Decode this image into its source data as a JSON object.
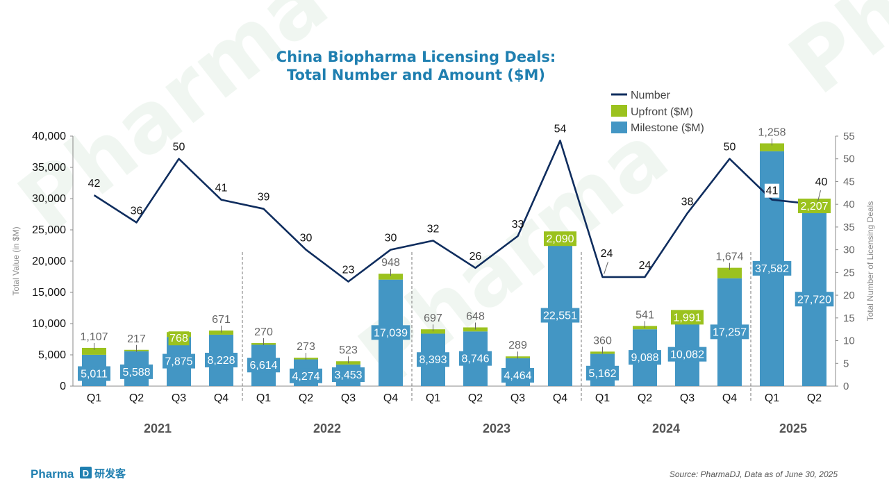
{
  "chart_data": {
    "type": "bar",
    "title_lines": [
      "China Biopharma Licensing Deals:",
      "Total Number and Amount ($M)"
    ],
    "ylabel": "Total Value (in $M)",
    "y2label": "Total Number of Licensing Deals",
    "ylim": [
      0,
      40000
    ],
    "y2lim": [
      0,
      55
    ],
    "yticks": [
      "0",
      "5,000",
      "10,000",
      "15,000",
      "20,000",
      "25,000",
      "30,000",
      "35,000",
      "40,000"
    ],
    "y2ticks": [
      "0",
      "5",
      "10",
      "15",
      "20",
      "25",
      "30",
      "35",
      "40",
      "45",
      "50",
      "55"
    ],
    "legend_position": "top-right",
    "years": [
      "2021",
      "2022",
      "2023",
      "2024",
      "2025"
    ],
    "categories": [
      "Q1",
      "Q2",
      "Q3",
      "Q4",
      "Q1",
      "Q2",
      "Q3",
      "Q4",
      "Q1",
      "Q2",
      "Q3",
      "Q4",
      "Q1",
      "Q2",
      "Q3",
      "Q4",
      "Q1",
      "Q2"
    ],
    "series": [
      {
        "name": "Milestone ($M)",
        "kind": "bar",
        "color": "#4396c4",
        "values": [
          5011,
          5588,
          7875,
          8228,
          6614,
          4274,
          3453,
          17039,
          8393,
          8746,
          4464,
          22551,
          5162,
          9088,
          10082,
          17257,
          37582,
          27720
        ],
        "labels": [
          "5,011",
          "5,588",
          "7,875",
          "8,228",
          "6,614",
          "4,274",
          "3,453",
          "17,039",
          "8,393",
          "8,746",
          "4,464",
          "22,551",
          "5,162",
          "9,088",
          "10,082",
          "17,257",
          "37,582",
          "27,720"
        ]
      },
      {
        "name": "Upfront ($M)",
        "kind": "bar",
        "color": "#9bc21e",
        "values": [
          1107,
          217,
          768,
          671,
          270,
          273,
          523,
          948,
          697,
          648,
          289,
          2090,
          360,
          541,
          1991,
          1674,
          1258,
          2207
        ],
        "labels": [
          "1,107",
          "217",
          "768",
          "671",
          "270",
          "273",
          "523",
          "948",
          "697",
          "648",
          "289",
          "2,090",
          "360",
          "541",
          "1,991",
          "1,674",
          "1,258",
          "2,207"
        ]
      },
      {
        "name": "Number",
        "kind": "line",
        "axis": "right",
        "color": "#0f2d5e",
        "values": [
          42,
          36,
          50,
          41,
          39,
          30,
          23,
          30,
          32,
          26,
          33,
          54,
          24,
          24,
          38,
          50,
          41,
          40
        ],
        "labels": [
          "42",
          "36",
          "50",
          "41",
          "39",
          "30",
          "23",
          "30",
          "32",
          "26",
          "33",
          "54",
          "24",
          "24",
          "38",
          "50",
          "41",
          "40"
        ]
      }
    ],
    "grid": false
  },
  "footer": {
    "source": "Source: PharmaDJ, Data as of June 30, 2025",
    "logo_text": "Pharma",
    "logo_cn": "研发客"
  }
}
